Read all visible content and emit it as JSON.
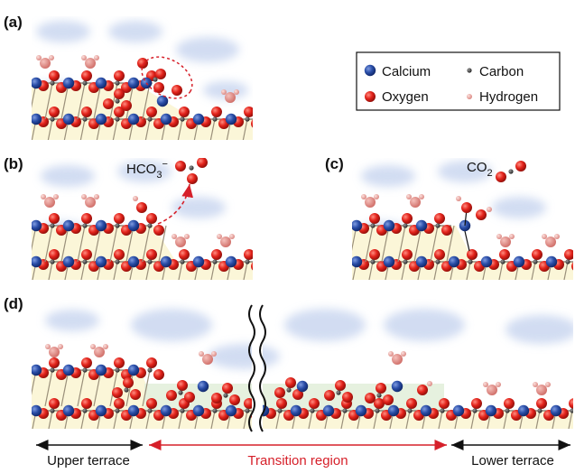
{
  "panels": {
    "a": {
      "label": "(a)"
    },
    "b": {
      "label": "(b)",
      "molecule": {
        "base": "HCO",
        "sub": "3",
        "sup": "−"
      }
    },
    "c": {
      "label": "(c)",
      "molecule": {
        "base": "CO",
        "sub": "2"
      }
    },
    "d": {
      "label": "(d)"
    }
  },
  "legend": {
    "items": [
      "Calcium",
      "Carbon",
      "Oxygen",
      "Hydrogen"
    ]
  },
  "regions": [
    "Upper terrace",
    "Transition region",
    "Lower terrace"
  ]
}
